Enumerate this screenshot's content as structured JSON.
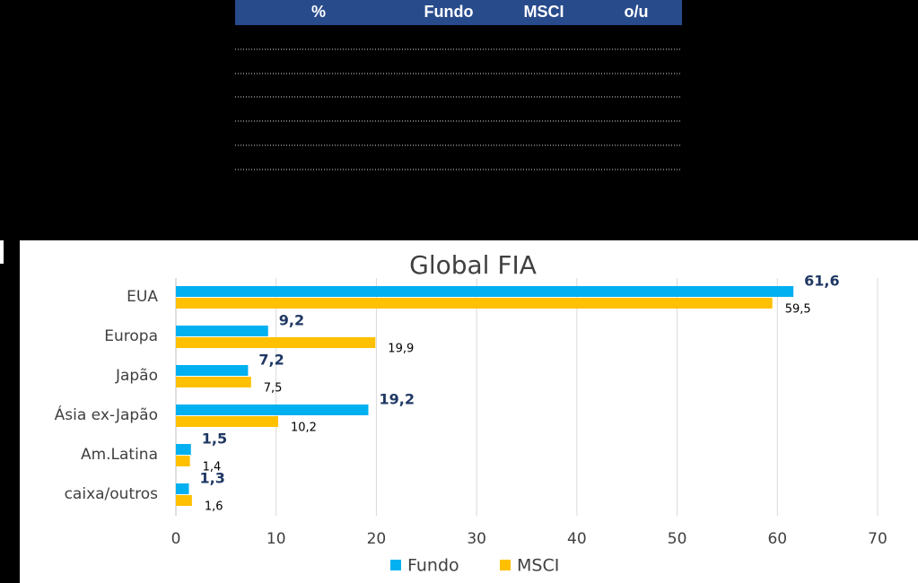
{
  "table": {
    "header": [
      "%",
      "Fundo",
      "MSCI",
      "o/u"
    ]
  },
  "chart_data": {
    "type": "bar",
    "orientation": "horizontal",
    "title": "Global FIA",
    "categories": [
      "EUA",
      "Europa",
      "Japão",
      "Ásia ex-Japão",
      "Am.Latina",
      "caixa/outros"
    ],
    "series": [
      {
        "name": "Fundo",
        "color": "#00b0f0",
        "values": [
          61.6,
          9.2,
          7.2,
          19.2,
          1.5,
          1.3
        ],
        "value_labels": [
          "61,6",
          "9,2",
          "7,2",
          "19,2",
          "1,5",
          "1,3"
        ]
      },
      {
        "name": "MSCI",
        "color": "#ffc000",
        "values": [
          59.5,
          19.9,
          7.5,
          10.2,
          1.4,
          1.6
        ],
        "value_labels": [
          "59,5",
          "19,9",
          "7,5",
          "10,2",
          "1,4",
          "1,6"
        ]
      }
    ],
    "xlim": [
      0,
      70
    ],
    "xticks": [
      0,
      10,
      20,
      30,
      40,
      50,
      60,
      70
    ],
    "grid": true,
    "legend": "bottom"
  }
}
